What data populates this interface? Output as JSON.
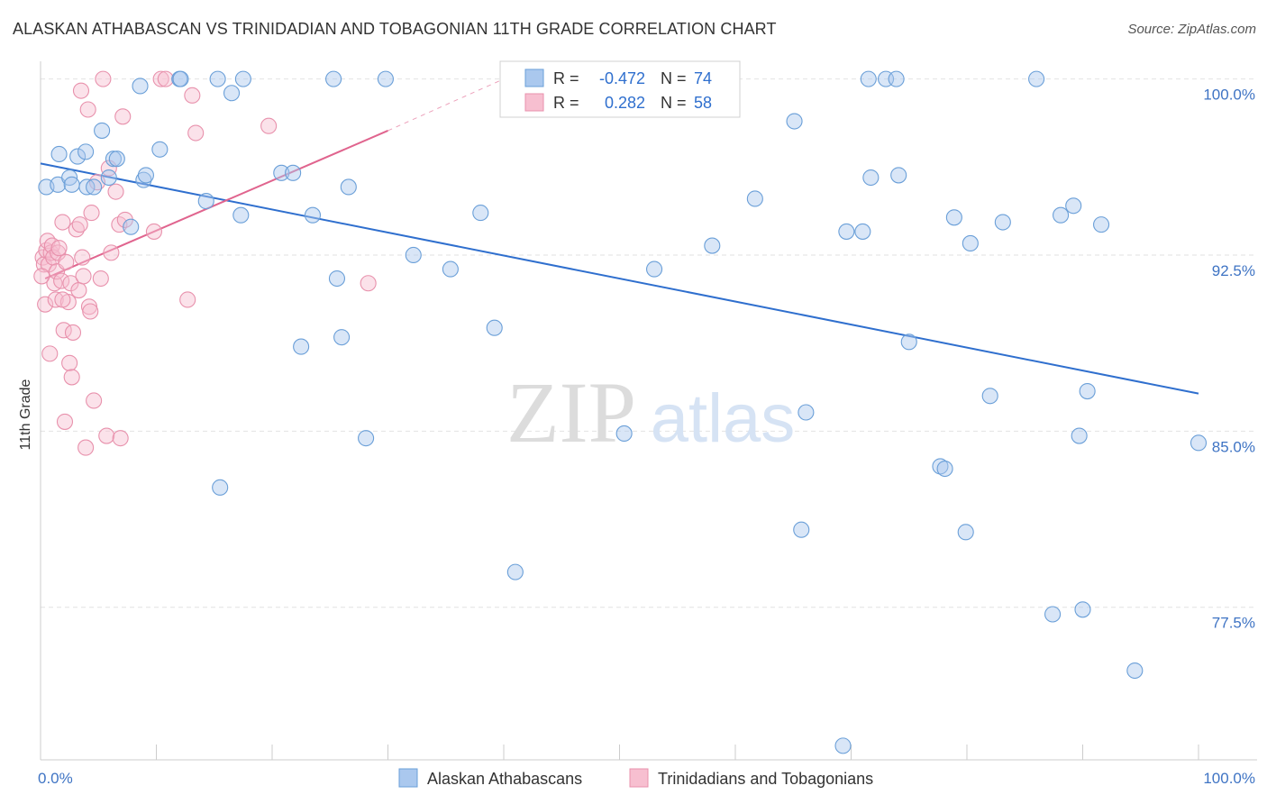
{
  "title": "ALASKAN ATHABASCAN VS TRINIDADIAN AND TOBAGONIAN 11TH GRADE CORRELATION CHART",
  "source": "Source: ZipAtlas.com",
  "watermark": {
    "zip": "ZIP",
    "atlas": "atlas"
  },
  "colors": {
    "blue": "#6a9fd8",
    "blue_fill": "#aac8ee",
    "blue_line": "#2f6fce",
    "pink": "#e891ac",
    "pink_fill": "#f7bfd0",
    "pink_line": "#e0648e",
    "axis_text_blue": "#3f74c4",
    "grid": "#e2e2e2"
  },
  "legend_box": {
    "rows": [
      {
        "r_label": "R =",
        "r_value": "-0.472",
        "n_label": "N =",
        "n_value": "74",
        "series": "blue"
      },
      {
        "r_label": "R =",
        "r_value": "0.282",
        "n_label": "N =",
        "n_value": "58",
        "series": "pink"
      }
    ]
  },
  "bottom_legend": [
    {
      "label": "Alaskan Athabascans",
      "series": "blue"
    },
    {
      "label": "Trinidadians and Tobagonians",
      "series": "pink"
    }
  ],
  "chart_data": {
    "type": "scatter",
    "title": "ALASKAN ATHABASCAN VS TRINIDADIAN AND TOBAGONIAN 11TH GRADE CORRELATION CHART",
    "xlabel": "",
    "ylabel": "11th Grade",
    "xlim": [
      0,
      100
    ],
    "ylim": [
      71.0,
      100.6
    ],
    "x_tick_labels": [
      "0.0%",
      "100.0%"
    ],
    "y_ticks": [
      77.5,
      85.0,
      92.5,
      100.0
    ],
    "y_tick_labels": [
      "77.5%",
      "85.0%",
      "92.5%",
      "100.0%"
    ],
    "grid": true,
    "legend_position": "top-center",
    "series": [
      {
        "name": "Alaskan Athabascans",
        "color": "blue",
        "r": -0.472,
        "n": 74,
        "trend": {
          "x": [
            0,
            100
          ],
          "y": [
            96.4,
            86.6
          ]
        },
        "points": [
          [
            0.5,
            95.4
          ],
          [
            1.5,
            95.5
          ],
          [
            1.6,
            96.8
          ],
          [
            2.5,
            95.8
          ],
          [
            2.7,
            95.5
          ],
          [
            3.2,
            96.7
          ],
          [
            3.9,
            96.9
          ],
          [
            4.0,
            95.4
          ],
          [
            4.6,
            95.4
          ],
          [
            5.3,
            97.8
          ],
          [
            5.9,
            95.8
          ],
          [
            6.3,
            96.6
          ],
          [
            6.6,
            96.6
          ],
          [
            7.8,
            93.7
          ],
          [
            8.6,
            99.7
          ],
          [
            8.9,
            95.7
          ],
          [
            9.1,
            95.9
          ],
          [
            10.3,
            97.0
          ],
          [
            12.0,
            100.0
          ],
          [
            12.1,
            100.0
          ],
          [
            14.3,
            94.8
          ],
          [
            15.3,
            100.0
          ],
          [
            15.5,
            82.6
          ],
          [
            16.5,
            99.4
          ],
          [
            17.3,
            94.2
          ],
          [
            17.5,
            100.0
          ],
          [
            20.8,
            96.0
          ],
          [
            21.8,
            96.0
          ],
          [
            22.5,
            88.6
          ],
          [
            23.5,
            94.2
          ],
          [
            25.3,
            100.0
          ],
          [
            25.6,
            91.5
          ],
          [
            26.0,
            89.0
          ],
          [
            26.6,
            95.4
          ],
          [
            28.1,
            84.7
          ],
          [
            29.8,
            100.0
          ],
          [
            32.2,
            92.5
          ],
          [
            35.4,
            91.9
          ],
          [
            38.0,
            94.3
          ],
          [
            39.2,
            89.4
          ],
          [
            41.0,
            79.0
          ],
          [
            50.4,
            84.9
          ],
          [
            53.0,
            91.9
          ],
          [
            58.0,
            92.9
          ],
          [
            61.7,
            94.9
          ],
          [
            65.1,
            98.2
          ],
          [
            65.7,
            80.8
          ],
          [
            66.1,
            85.8
          ],
          [
            69.3,
            71.6
          ],
          [
            69.6,
            93.5
          ],
          [
            71.5,
            100.0
          ],
          [
            71.7,
            95.8
          ],
          [
            73.0,
            100.0
          ],
          [
            73.9,
            100.0
          ],
          [
            74.1,
            95.9
          ],
          [
            75.0,
            88.8
          ],
          [
            77.7,
            83.5
          ],
          [
            78.1,
            83.4
          ],
          [
            78.9,
            94.1
          ],
          [
            79.9,
            80.7
          ],
          [
            80.3,
            93.0
          ],
          [
            82.0,
            86.5
          ],
          [
            83.1,
            93.9
          ],
          [
            86.0,
            100.0
          ],
          [
            87.4,
            77.2
          ],
          [
            88.1,
            94.2
          ],
          [
            89.2,
            94.6
          ],
          [
            89.7,
            84.8
          ],
          [
            90.0,
            77.4
          ],
          [
            90.4,
            86.7
          ],
          [
            91.6,
            93.8
          ],
          [
            94.5,
            74.8
          ],
          [
            100.0,
            84.5
          ],
          [
            71.0,
            93.5
          ]
        ]
      },
      {
        "name": "Trinidadians and Tobagonians",
        "color": "pink",
        "r": 0.282,
        "n": 58,
        "trend": {
          "x": [
            0.4,
            30.0
          ],
          "y": [
            91.5,
            97.8
          ]
        },
        "trend_dashed": {
          "x": [
            30.0,
            40.0
          ],
          "y": [
            97.8,
            100.0
          ]
        },
        "points": [
          [
            0.2,
            92.4
          ],
          [
            0.3,
            92.1
          ],
          [
            0.4,
            90.4
          ],
          [
            0.5,
            92.7
          ],
          [
            0.6,
            93.1
          ],
          [
            0.7,
            92.1
          ],
          [
            0.8,
            88.3
          ],
          [
            0.9,
            92.6
          ],
          [
            1.0,
            92.9
          ],
          [
            1.1,
            92.4
          ],
          [
            1.2,
            91.3
          ],
          [
            1.3,
            90.6
          ],
          [
            1.4,
            91.8
          ],
          [
            1.5,
            92.6
          ],
          [
            1.6,
            92.8
          ],
          [
            1.8,
            91.4
          ],
          [
            1.9,
            93.9
          ],
          [
            2.0,
            89.3
          ],
          [
            2.1,
            85.4
          ],
          [
            2.2,
            92.2
          ],
          [
            2.4,
            90.5
          ],
          [
            2.5,
            87.9
          ],
          [
            2.6,
            91.3
          ],
          [
            2.7,
            87.3
          ],
          [
            2.8,
            89.2
          ],
          [
            3.1,
            93.6
          ],
          [
            3.3,
            91.0
          ],
          [
            3.4,
            93.8
          ],
          [
            3.5,
            99.5
          ],
          [
            3.6,
            92.4
          ],
          [
            3.7,
            91.6
          ],
          [
            3.9,
            84.3
          ],
          [
            4.1,
            98.7
          ],
          [
            4.2,
            90.3
          ],
          [
            4.3,
            90.1
          ],
          [
            4.4,
            94.3
          ],
          [
            4.6,
            86.3
          ],
          [
            4.9,
            95.6
          ],
          [
            5.2,
            91.5
          ],
          [
            5.4,
            100.0
          ],
          [
            5.7,
            84.8
          ],
          [
            5.9,
            96.2
          ],
          [
            6.1,
            92.6
          ],
          [
            6.5,
            95.2
          ],
          [
            6.8,
            93.8
          ],
          [
            6.9,
            84.7
          ],
          [
            7.1,
            98.4
          ],
          [
            7.3,
            94.0
          ],
          [
            9.8,
            93.5
          ],
          [
            10.4,
            100.0
          ],
          [
            10.8,
            100.0
          ],
          [
            12.7,
            90.6
          ],
          [
            13.1,
            99.3
          ],
          [
            13.4,
            97.7
          ],
          [
            19.7,
            98.0
          ],
          [
            28.3,
            91.3
          ],
          [
            0.1,
            91.6
          ],
          [
            1.9,
            90.6
          ]
        ]
      }
    ]
  }
}
